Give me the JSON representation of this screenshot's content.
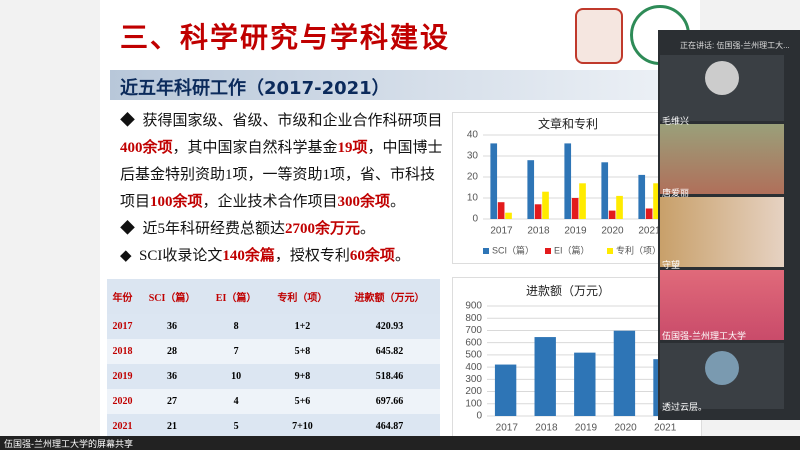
{
  "slide": {
    "title": "三、科学研究与学科建设",
    "section": "近五年科研工作（2017-2021）",
    "bullets": [
      {
        "runs": [
          "获得国家级、省级、市级和企业合作科研项目",
          "400余项",
          "，其中国家自然科学基金",
          "19项",
          "，中国博士后基金特别资助1项，一等资助1项，省、市科技项目",
          "100余项",
          "，企业技术合作项目",
          "300余项",
          "。"
        ]
      },
      {
        "runs": [
          "近5年科研经费总额达",
          "2700余万元",
          "。"
        ]
      },
      {
        "runs": [
          "SCI收录论文",
          "140余篇",
          "，授权专利",
          "60余项",
          "。"
        ]
      }
    ],
    "table": {
      "header": [
        "年份",
        "SCI（篇）",
        "EI（篇）",
        "专利（项）",
        "进款额（万元）"
      ],
      "rows": [
        [
          2017,
          36,
          8,
          "1+2",
          420.93
        ],
        [
          2018,
          28,
          7,
          "5+8",
          645.82
        ],
        [
          2019,
          36,
          10,
          "9+8",
          518.46
        ],
        [
          2020,
          27,
          4,
          "5+6",
          697.66
        ],
        [
          2021,
          21,
          5,
          "7+10",
          464.87
        ]
      ]
    },
    "charts": [
      {
        "type": "bar",
        "title": "文章和专利",
        "categories": [
          "2017",
          "2018",
          "2019",
          "2020",
          "2021"
        ],
        "series": [
          {
            "name": "SCI（篇）",
            "color": "#2e75b6",
            "values": [
              36,
              28,
              36,
              27,
              21
            ]
          },
          {
            "name": "EI（篇）",
            "color": "#e31a1c",
            "values": [
              8,
              7,
              10,
              4,
              5
            ]
          },
          {
            "name": "专利（项）",
            "color": "#ffeb00",
            "values": [
              3,
              13,
              17,
              11,
              17
            ]
          }
        ],
        "ylim": [
          0,
          40
        ],
        "yticks": [
          0,
          10,
          20,
          30,
          40
        ],
        "grid": true
      },
      {
        "type": "bar",
        "title": "进款额（万元）",
        "categories": [
          "2017",
          "2018",
          "2019",
          "2020",
          "2021"
        ],
        "color": "#2e75b6",
        "values": [
          420.93,
          645.82,
          518.46,
          697.66,
          464.87
        ],
        "ylim": [
          0,
          900
        ],
        "yticks": [
          0,
          100,
          200,
          300,
          400,
          500,
          600,
          700,
          800,
          900
        ],
        "grid": true
      }
    ]
  },
  "meeting": {
    "speaking": "正在讲话: 伍国强-兰州理工大...",
    "participants": [
      "毛维兴",
      "唐爱丽",
      "守望",
      "伍国强-兰州理工大学",
      "透过云层。"
    ],
    "share": "伍国强-兰州理工大学的屏幕共享"
  }
}
